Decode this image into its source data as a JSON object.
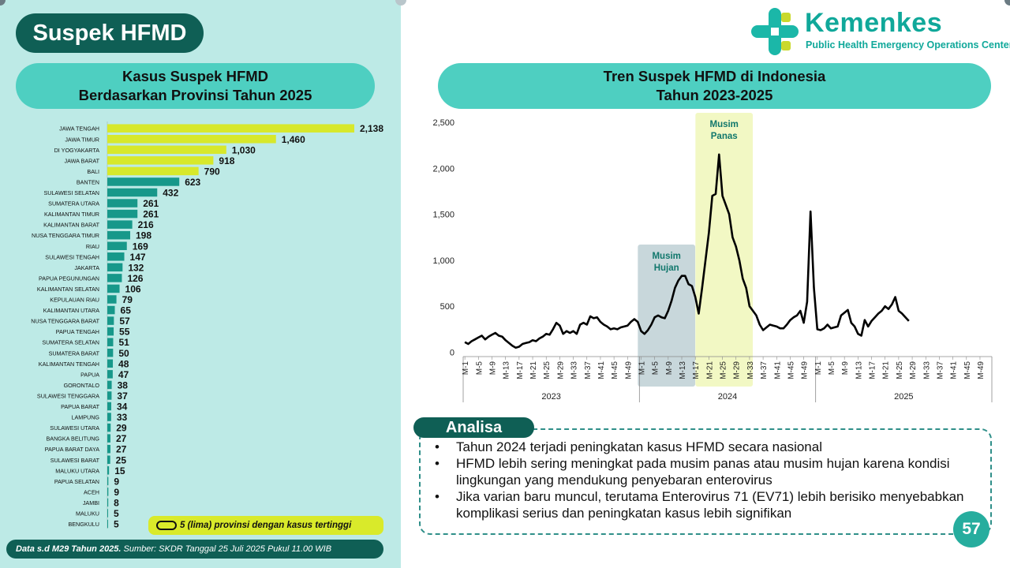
{
  "title": "Suspek HFMD",
  "left_panel": {
    "heading_line1": "Kasus Suspek HFMD",
    "heading_line2": "Berdasarkan Provinsi Tahun 2025",
    "legend_text": "5 (lima) provinsi dengan kasus tertinggi",
    "footnote_bold": "Data s.d M29 Tahun 2025.",
    "footnote_rest": " Sumber: SKDR Tanggal 25 Juli 2025 Pukul 11.00 WIB"
  },
  "logo": {
    "name": "Kemenkes",
    "subtitle": "Public Health Emergency Operations Center"
  },
  "right_panel": {
    "heading_line1": "Tren Suspek HFMD di Indonesia",
    "heading_line2": "Tahun 2023-2025",
    "annotation_hujan": [
      "Musim",
      "Hujan"
    ],
    "annotation_panas": [
      "Musim",
      "Panas"
    ]
  },
  "analisa": {
    "label": "Analisa",
    "bullets": [
      "Tahun 2024 terjadi peningkatan kasus HFMD secara nasional",
      "HFMD lebih sering meningkat pada musim panas atau musim hujan karena kondisi lingkungan yang mendukung penyebaran enterovirus",
      "Jika varian baru muncul, terutama Enterovirus 71 (EV71) lebih berisiko menyebabkan komplikasi serius dan peningkatan kasus lebih signifikan"
    ]
  },
  "page_number": "57",
  "colors": {
    "top5": "#d7e82b",
    "rest": "#17988a",
    "dark": "#0f5f55",
    "pill": "#4ecfc1",
    "panel": "#bdeae6",
    "hujan_band": "#9ab7bd",
    "panas_band": "#eef5b0"
  },
  "chart_data": [
    {
      "type": "bar",
      "orientation": "horizontal",
      "title": "Kasus Suspek HFMD Berdasarkan Provinsi Tahun 2025",
      "categories": [
        "JAWA TENGAH",
        "JAWA TIMUR",
        "DI YOGYAKARTA",
        "JAWA BARAT",
        "BALI",
        "BANTEN",
        "SULAWESI SELATAN",
        "SUMATERA UTARA",
        "KALIMANTAN TIMUR",
        "KALIMANTAN BARAT",
        "NUSA TENGGARA TIMUR",
        "RIAU",
        "SULAWESI TENGAH",
        "JAKARTA",
        "PAPUA PEGUNUNGAN",
        "KALIMANTAN SELATAN",
        "KEPULAUAN RIAU",
        "KALIMANTAN UTARA",
        "NUSA TENGGARA BARAT",
        "PAPUA TENGAH",
        "SUMATERA SELATAN",
        "SUMATERA BARAT",
        "KALIMANTAN TENGAH",
        "PAPUA",
        "GORONTALO",
        "SULAWESI TENGGARA",
        "PAPUA BARAT",
        "LAMPUNG",
        "SULAWESI UTARA",
        "BANGKA BELITUNG",
        "PAPUA BARAT DAYA",
        "SULAWESI BARAT",
        "MALUKU UTARA",
        "PAPUA SELATAN",
        "ACEH",
        "JAMBI",
        "MALUKU",
        "BENGKULU"
      ],
      "values": [
        2138,
        1460,
        1030,
        918,
        790,
        623,
        432,
        261,
        261,
        216,
        198,
        169,
        147,
        132,
        126,
        106,
        79,
        65,
        57,
        55,
        51,
        50,
        48,
        47,
        38,
        37,
        34,
        33,
        29,
        27,
        27,
        25,
        15,
        9,
        9,
        8,
        5,
        5
      ],
      "value_labels": [
        "2,138",
        "1,460",
        "1,030",
        "918",
        "790",
        "623",
        "432",
        "261",
        "261",
        "216",
        "198",
        "169",
        "147",
        "132",
        "126",
        "106",
        "79",
        "65",
        "57",
        "55",
        "51",
        "50",
        "48",
        "47",
        "38",
        "37",
        "34",
        "33",
        "29",
        "27",
        "27",
        "25",
        "15",
        "9",
        "9",
        "8",
        "5",
        "5"
      ],
      "highlight_top_n": 5
    },
    {
      "type": "line",
      "title": "Tren Suspek HFMD di Indonesia Tahun 2023-2025",
      "yticks": [
        0,
        500,
        1000,
        1500,
        2000,
        2500
      ],
      "ytick_labels": [
        "0",
        "500",
        "1,000",
        "1,500",
        "2,000",
        "2,500"
      ],
      "ylim": [
        0,
        2500
      ],
      "years": [
        "2023",
        "2024",
        "2025"
      ],
      "week_tick_labels": [
        "M-1",
        "M-5",
        "M-9",
        "M-13",
        "M-17",
        "M-21",
        "M-25",
        "M-29",
        "M-33",
        "M-37",
        "M-41",
        "M-45",
        "M-49"
      ],
      "weeks_per_year": 52,
      "week_ticks_shown_2025": 13,
      "shaded_periods": [
        {
          "label": "Musim Hujan",
          "year": "2024",
          "from_week": 1,
          "to_week": 16
        },
        {
          "label": "Musim Panas",
          "year": "2024",
          "from_week": 18,
          "to_week": 33
        }
      ],
      "series": [
        {
          "year2023": [
            110,
            90,
            120,
            140,
            160,
            180,
            140,
            170,
            190,
            210,
            180,
            170,
            130,
            100,
            70,
            50,
            60,
            90,
            100,
            110,
            130,
            120,
            150,
            170,
            200,
            190,
            250,
            320,
            290,
            200,
            230,
            210,
            230,
            200,
            300,
            320,
            300,
            390,
            370,
            380,
            330,
            300,
            280,
            250,
            260,
            250,
            270,
            280,
            290,
            330,
            360,
            330
          ],
          "year2024": [
            230,
            200,
            240,
            300,
            380,
            400,
            380,
            370,
            450,
            560,
            700,
            780,
            830,
            830,
            740,
            720,
            600,
            420,
            700,
            1000,
            1300,
            1700,
            1720,
            2150,
            1700,
            1600,
            1500,
            1250,
            1150,
            1000,
            800,
            700,
            500,
            450,
            400,
            300,
            240,
            270,
            300,
            290,
            280,
            260,
            260,
            300,
            350,
            380,
            400,
            450,
            320,
            550,
            1530,
            700
          ],
          "year2025": [
            250,
            240,
            260,
            300,
            260,
            270,
            280,
            400,
            430,
            460,
            320,
            280,
            200,
            180,
            350,
            280,
            340,
            380,
            420,
            450,
            500,
            470,
            520,
            600,
            450,
            420,
            380,
            340
          ]
        }
      ]
    }
  ]
}
